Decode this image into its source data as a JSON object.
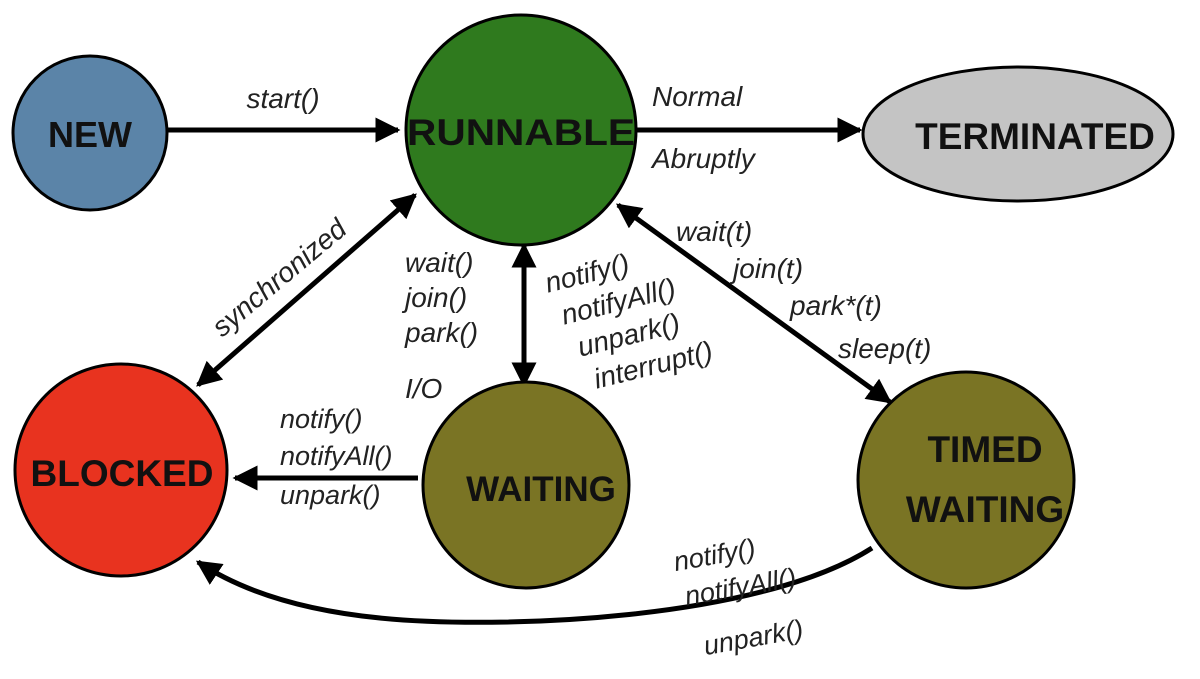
{
  "states": {
    "new": {
      "label": "NEW",
      "color": "#5b84a8"
    },
    "runnable": {
      "label": "RUNNABLE",
      "color": "#2f7a1e"
    },
    "terminated": {
      "label": "TERMINATED",
      "color": "#c4c4c4"
    },
    "blocked": {
      "label": "BLOCKED",
      "color": "#e8331f"
    },
    "waiting": {
      "label": "WAITING",
      "color": "#7a7424"
    },
    "timed_waiting": {
      "label_line1": "TIMED",
      "label_line2": "WAITING",
      "color": "#7a7424"
    }
  },
  "transitions": {
    "new_to_runnable": [
      "start()"
    ],
    "runnable_to_terminated": [
      "Normal",
      "Abruptly"
    ],
    "runnable_blocked": [
      "synchronized"
    ],
    "runnable_to_waiting": [
      "wait()",
      "join()",
      "park()",
      "I/O"
    ],
    "waiting_to_runnable": [
      "notify()",
      "notifyAll()",
      "unpark()",
      "interrupt()"
    ],
    "runnable_timed_waiting": [
      "wait(t)",
      "join(t)",
      "park*(t)",
      "sleep(t)"
    ],
    "waiting_to_blocked": [
      "notify()",
      "notifyAll()",
      "unpark()"
    ],
    "timed_waiting_to_blocked": [
      "notify()",
      "notifyAll()",
      "unpark()"
    ]
  }
}
